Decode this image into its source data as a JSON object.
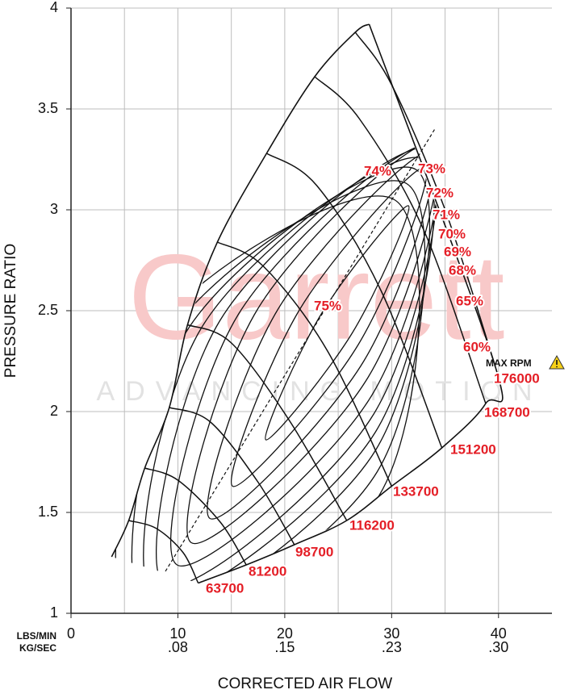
{
  "chart_data": {
    "type": "compressor_map",
    "ylabel": "PRESSURE RATIO",
    "xlabel": "CORRECTED AIR FLOW",
    "x_units": [
      "LBS/MIN",
      "KG/SEC"
    ],
    "xlim": [
      0,
      45
    ],
    "ylim": [
      1,
      4
    ],
    "xticks": [
      0,
      10,
      20,
      30,
      40
    ],
    "x2ticks": [
      {
        "value": 10,
        "label": ".08"
      },
      {
        "value": 20,
        "label": ".15"
      },
      {
        "value": 30,
        "label": ".23"
      },
      {
        "value": 40,
        "label": ".30"
      }
    ],
    "xgrid": [
      5,
      15,
      25,
      35
    ],
    "yticks": [
      1,
      1.5,
      2,
      2.5,
      3,
      3.5,
      4
    ],
    "grid": true,
    "line_color": "#111111",
    "label_color": "#e41e26",
    "surge": {
      "x": [
        3.8,
        5.4,
        6.9,
        9.2,
        10.9,
        13.7,
        18.3,
        22.8,
        26.6,
        27.9
      ],
      "y": [
        1.28,
        1.46,
        1.72,
        2.02,
        2.43,
        2.84,
        3.28,
        3.66,
        3.88,
        3.92
      ]
    },
    "speed_lines": [
      {
        "name": "63700",
        "x": [
          5.4,
          8,
          10.5,
          11.9
        ],
        "y": [
          1.46,
          1.42,
          1.3,
          1.15
        ]
      },
      {
        "name": "81200",
        "x": [
          6.9,
          10,
          14,
          16.4
        ],
        "y": [
          1.72,
          1.66,
          1.45,
          1.24
        ]
      },
      {
        "name": "98700",
        "x": [
          9.2,
          13,
          17.5,
          20.9
        ],
        "y": [
          2.02,
          1.95,
          1.65,
          1.34
        ]
      },
      {
        "name": "116200",
        "x": [
          10.9,
          15,
          20.5,
          25.8
        ],
        "y": [
          2.43,
          2.34,
          1.95,
          1.46
        ]
      },
      {
        "name": "133700",
        "x": [
          13.7,
          18,
          24,
          30
        ],
        "y": [
          2.84,
          2.72,
          2.3,
          1.63
        ]
      },
      {
        "name": "151200",
        "x": [
          18.3,
          23,
          29,
          34.7
        ],
        "y": [
          3.28,
          3.12,
          2.6,
          1.82
        ]
      },
      {
        "name": "168700",
        "x": [
          22.8,
          27,
          33,
          38.8
        ],
        "y": [
          3.66,
          3.45,
          2.9,
          2.04
        ]
      },
      {
        "name": "176000",
        "x": [
          26.6,
          30,
          35,
          39.6
        ],
        "y": [
          3.88,
          3.62,
          3.0,
          2.24
        ]
      }
    ],
    "efficiency_islands": [
      {
        "name": "60%",
        "x": [
          30.26,
          28.79,
          4.75,
          6.23
        ],
        "y": [
          3.05,
          1.58,
          0.83,
          2.3
        ]
      },
      {
        "name": "65%",
        "x": [
          31.4,
          28.63,
          5.89,
          8.65
        ],
        "y": [
          3.13,
          1.7,
          0.91,
          2.34
        ]
      },
      {
        "name": "68%",
        "x": [
          32.26,
          28.52,
          6.99,
          10.72
        ],
        "y": [
          3.2,
          1.81,
          1.0,
          2.39
        ]
      },
      {
        "name": "69%",
        "x": [
          32.94,
          28.5,
          7.82,
          12.26
        ],
        "y": [
          3.25,
          1.9,
          1.07,
          2.42
        ]
      },
      {
        "name": "70%",
        "x": [
          33.49,
          28.35,
          8.77,
          13.92
        ],
        "y": [
          3.3,
          1.99,
          1.14,
          2.45
        ]
      },
      {
        "name": "71%",
        "x": [
          33.86,
          28.14,
          9.92,
          15.64
        ],
        "y": [
          3.32,
          2.08,
          1.24,
          2.48
        ]
      },
      {
        "name": "72%",
        "x": [
          34.02,
          27.8,
          11.26,
          17.49
        ],
        "y": [
          3.33,
          2.17,
          1.35,
          2.51
        ]
      },
      {
        "name": "73%",
        "x": [
          33.8,
          27.39,
          13.0,
          19.4
        ],
        "y": [
          3.29,
          2.25,
          1.47,
          2.51
        ]
      },
      {
        "name": "74%",
        "x": [
          33.18,
          26.86,
          15.12,
          21.44
        ],
        "y": [
          3.21,
          2.33,
          1.63,
          2.51
        ]
      },
      {
        "name": "75%",
        "x": [
          31.58,
          26.32,
          18.23,
          23.49
        ],
        "y": [
          3.02,
          2.39,
          1.86,
          2.49
        ]
      }
    ],
    "annotation": "MAX RPM",
    "watermark": {
      "brand": "Garrett",
      "tagline": "ADVANCING MOTION"
    }
  }
}
